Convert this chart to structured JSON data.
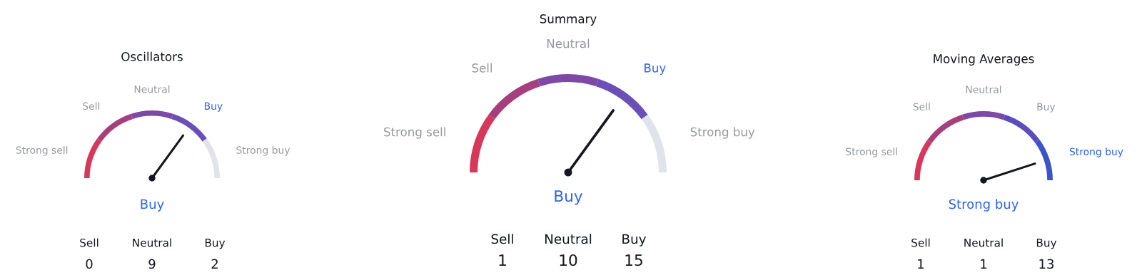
{
  "chart_data": [
    {
      "type": "donut",
      "title": "Summary",
      "categories": [
        "Strong sell",
        "Sell",
        "Neutral",
        "Buy",
        "Strong buy"
      ],
      "values": [
        20,
        20,
        20,
        20,
        20
      ],
      "colors": [
        "#d8375a",
        "#a83e7e",
        "#7e48a8",
        "#6a4fb8",
        "#e0e3eb"
      ],
      "needle": "Buy",
      "annotations": [
        "Buy",
        "Sell",
        "Neutral",
        "Buy",
        "1",
        "10",
        "15"
      ]
    },
    {
      "type": "donut",
      "title": "Oscillators",
      "categories": [
        "Strong sell",
        "Sell",
        "Neutral",
        "Buy",
        "Strong buy"
      ],
      "values": [
        20,
        20,
        20,
        20,
        20
      ],
      "colors": [
        "#d8375a",
        "#a83e7e",
        "#7e48a8",
        "#6a4fb8",
        "#e0e3eb"
      ],
      "needle": "Buy",
      "annotations": [
        "Buy",
        "Sell",
        "Neutral",
        "Buy",
        "0",
        "9",
        "2"
      ]
    },
    {
      "type": "donut",
      "title": "Moving Averages",
      "categories": [
        "Strong sell",
        "Sell",
        "Neutral",
        "Buy",
        "Strong buy"
      ],
      "values": [
        20,
        20,
        20,
        20,
        20
      ],
      "colors": [
        "#d8375a",
        "#a83e7e",
        "#7e48a8",
        "#5a4dbf",
        "#3a55cc"
      ],
      "needle": "Strong buy",
      "annotations": [
        "Strong buy",
        "Sell",
        "Neutral",
        "Buy",
        "1",
        "1",
        "13"
      ]
    }
  ]
}
